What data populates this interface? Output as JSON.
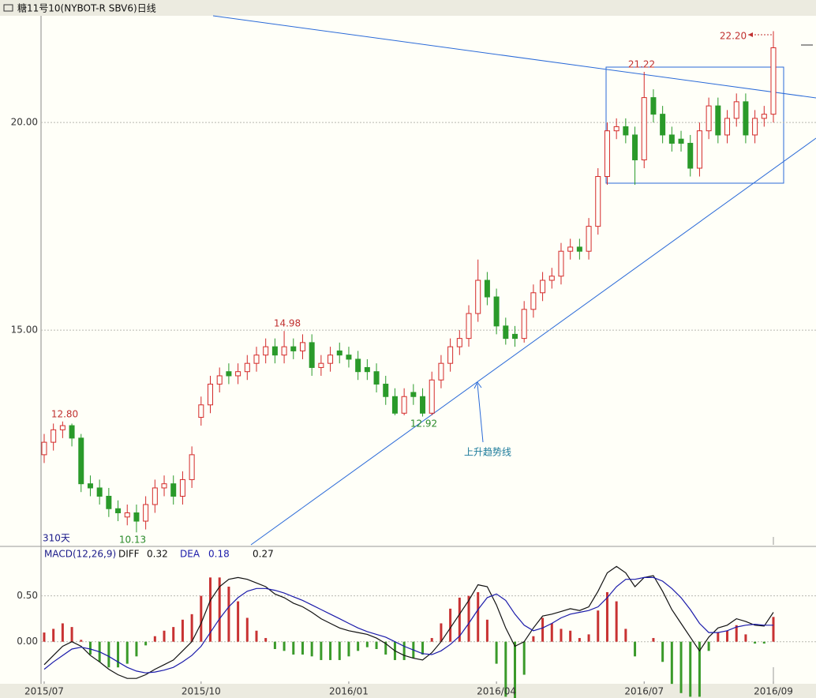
{
  "window_title": "糖11号10(NYBOT-R SBV6)日线",
  "chart_data": [
    {
      "type": "candlestick",
      "categories": [
        null,
        null,
        null,
        null,
        null,
        null,
        null,
        null,
        null,
        null,
        null,
        null,
        null,
        null,
        null,
        null,
        null,
        null,
        null,
        null,
        null,
        null,
        null,
        null,
        null,
        null,
        null,
        null,
        null,
        null,
        null,
        null,
        null,
        null,
        null,
        null,
        null,
        null,
        null,
        null,
        null,
        null,
        null,
        null,
        null,
        null,
        null,
        null,
        null,
        null,
        null,
        null,
        null,
        null,
        null,
        null,
        null,
        null,
        null,
        null,
        null,
        null,
        null,
        null,
        null,
        null,
        null,
        null,
        null,
        null,
        null,
        null,
        null,
        null,
        null,
        null,
        null,
        null,
        null,
        null
      ],
      "open": [
        12.0,
        12.3,
        12.6,
        12.7,
        12.4,
        11.3,
        11.2,
        11.0,
        10.7,
        10.5,
        10.6,
        10.4,
        10.8,
        11.2,
        11.3,
        11.0,
        11.4,
        12.9,
        13.2,
        13.7,
        14.0,
        13.9,
        14.0,
        14.2,
        14.4,
        14.6,
        14.4,
        14.6,
        14.5,
        14.7,
        14.1,
        14.2,
        14.5,
        14.4,
        14.3,
        14.1,
        14.0,
        13.7,
        13.4,
        13.0,
        13.5,
        13.4,
        13.0,
        13.8,
        14.2,
        14.6,
        14.8,
        15.4,
        16.2,
        15.8,
        15.1,
        14.9,
        14.8,
        15.5,
        15.9,
        16.2,
        16.3,
        16.9,
        17.0,
        16.9,
        17.5,
        18.7,
        19.8,
        19.9,
        19.7,
        19.1,
        20.6,
        20.2,
        19.7,
        19.6,
        19.5,
        18.9,
        19.8,
        20.4,
        19.7,
        20.1,
        20.5,
        19.7,
        20.1,
        20.2
      ],
      "high": [
        12.5,
        12.75,
        12.8,
        12.75,
        12.5,
        11.5,
        11.4,
        11.2,
        10.9,
        10.8,
        10.8,
        11.0,
        11.4,
        11.5,
        11.5,
        11.6,
        12.2,
        13.4,
        13.9,
        14.1,
        14.2,
        14.2,
        14.4,
        14.6,
        14.8,
        14.8,
        14.98,
        14.8,
        14.9,
        14.9,
        14.4,
        14.6,
        14.7,
        14.6,
        14.5,
        14.3,
        14.2,
        13.9,
        13.6,
        13.6,
        13.7,
        13.6,
        14.0,
        14.4,
        14.8,
        15.0,
        15.6,
        16.7,
        16.4,
        16.0,
        15.3,
        15.1,
        15.7,
        16.1,
        16.4,
        16.5,
        17.1,
        17.2,
        17.2,
        17.7,
        18.9,
        20.0,
        20.1,
        20.1,
        19.9,
        21.22,
        20.8,
        20.4,
        19.9,
        19.8,
        19.7,
        20.0,
        20.6,
        20.6,
        20.3,
        20.7,
        20.7,
        20.3,
        20.4,
        22.2
      ],
      "low": [
        11.8,
        12.1,
        12.4,
        12.2,
        11.1,
        11.0,
        10.8,
        10.5,
        10.4,
        10.3,
        10.13,
        10.2,
        10.6,
        11.0,
        10.8,
        10.8,
        11.2,
        12.7,
        13.0,
        13.5,
        13.7,
        13.7,
        13.8,
        14.0,
        14.2,
        14.2,
        14.2,
        14.3,
        14.3,
        13.9,
        13.9,
        14.0,
        14.2,
        14.1,
        13.8,
        13.8,
        13.5,
        13.2,
        12.95,
        12.95,
        13.2,
        12.92,
        12.95,
        13.6,
        14.0,
        14.4,
        14.6,
        15.2,
        15.6,
        14.9,
        14.65,
        14.6,
        14.7,
        15.3,
        15.7,
        16.0,
        16.1,
        16.7,
        16.7,
        16.7,
        17.3,
        18.5,
        19.6,
        19.5,
        18.5,
        18.9,
        20.0,
        19.5,
        19.3,
        19.3,
        18.7,
        18.7,
        19.6,
        19.5,
        19.5,
        19.9,
        19.5,
        19.5,
        19.9,
        20.0
      ],
      "close": [
        12.3,
        12.6,
        12.7,
        12.4,
        11.3,
        11.2,
        11.0,
        10.7,
        10.6,
        10.6,
        10.4,
        10.8,
        11.2,
        11.3,
        11.0,
        11.4,
        12.0,
        13.2,
        13.7,
        13.9,
        13.9,
        14.0,
        14.2,
        14.4,
        14.6,
        14.4,
        14.6,
        14.5,
        14.7,
        14.1,
        14.2,
        14.4,
        14.4,
        14.3,
        14.0,
        14.0,
        13.7,
        13.4,
        13.0,
        13.4,
        13.4,
        13.0,
        13.8,
        14.2,
        14.6,
        14.8,
        15.4,
        16.2,
        15.8,
        15.1,
        14.8,
        14.8,
        15.5,
        15.9,
        16.2,
        16.3,
        16.9,
        17.0,
        16.9,
        17.5,
        18.7,
        19.8,
        19.9,
        19.7,
        19.1,
        20.6,
        20.2,
        19.7,
        19.5,
        19.5,
        18.9,
        19.8,
        20.4,
        19.7,
        20.1,
        20.5,
        19.7,
        20.1,
        20.2,
        21.8
      ],
      "up_color": "#d42a2a",
      "down_color": "#2a9a2a",
      "xlim": [
        -0.34,
        82.42
      ],
      "ylim": [
        9.83,
        22.57
      ],
      "yticks": [
        {
          "value": 15,
          "label": "15.00"
        },
        {
          "value": 20,
          "label": "20.00"
        }
      ],
      "grid": true,
      "annotations": [
        {
          "text": "12.80"
        },
        {
          "text": "10.13"
        },
        {
          "text": "14.98"
        },
        {
          "text": "12.92"
        },
        {
          "text": "21.22"
        },
        {
          "text": "22.20"
        }
      ],
      "period_label": "310天",
      "trend_label": "上升趋势线"
    },
    {
      "type": "macd",
      "title": "MACD(12,26,9)",
      "diff_value": 0.32,
      "dea_value": 0.18,
      "macd_value": 0.27,
      "xlim": [
        -0.34,
        82.42
      ],
      "ylim": [
        -0.45,
        1.03
      ],
      "yticks": [
        {
          "value": 0,
          "label": "0.00"
        },
        {
          "value": 0.5,
          "label": "0.50"
        }
      ],
      "grid": true,
      "xticks": [
        {
          "value": 0,
          "label": "2015/07"
        },
        {
          "value": 17,
          "label": "2015/10"
        },
        {
          "value": 33,
          "label": "2016/01"
        },
        {
          "value": 49,
          "label": "2016/04"
        },
        {
          "value": 65,
          "label": "2016/07"
        },
        {
          "value": 79,
          "label": "2016/09"
        }
      ],
      "series": [
        {
          "name": "DIFF",
          "color": "#111111",
          "values": [
            -0.25,
            -0.15,
            -0.05,
            0.0,
            -0.05,
            -0.15,
            -0.22,
            -0.3,
            -0.36,
            -0.4,
            -0.4,
            -0.36,
            -0.3,
            -0.25,
            -0.2,
            -0.1,
            0.0,
            0.2,
            0.45,
            0.6,
            0.68,
            0.7,
            0.68,
            0.64,
            0.6,
            0.52,
            0.48,
            0.42,
            0.38,
            0.32,
            0.25,
            0.2,
            0.15,
            0.12,
            0.1,
            0.08,
            0.04,
            -0.02,
            -0.1,
            -0.15,
            -0.18,
            -0.2,
            -0.12,
            0.0,
            0.15,
            0.3,
            0.45,
            0.62,
            0.6,
            0.4,
            0.15,
            -0.05,
            0.0,
            0.15,
            0.28,
            0.3,
            0.33,
            0.36,
            0.34,
            0.38,
            0.55,
            0.75,
            0.82,
            0.75,
            0.6,
            0.7,
            0.72,
            0.55,
            0.35,
            0.2,
            0.05,
            -0.1,
            0.05,
            0.15,
            0.18,
            0.25,
            0.22,
            0.18,
            0.17,
            0.32
          ]
        },
        {
          "name": "DEA",
          "color": "#1a1aaa",
          "values": [
            -0.3,
            -0.22,
            -0.15,
            -0.08,
            -0.06,
            -0.08,
            -0.11,
            -0.16,
            -0.22,
            -0.28,
            -0.32,
            -0.34,
            -0.33,
            -0.31,
            -0.28,
            -0.22,
            -0.15,
            -0.05,
            0.1,
            0.25,
            0.38,
            0.48,
            0.55,
            0.58,
            0.58,
            0.56,
            0.53,
            0.49,
            0.45,
            0.4,
            0.35,
            0.3,
            0.25,
            0.2,
            0.15,
            0.11,
            0.08,
            0.05,
            0.0,
            -0.05,
            -0.09,
            -0.13,
            -0.14,
            -0.1,
            -0.03,
            0.06,
            0.2,
            0.35,
            0.48,
            0.52,
            0.45,
            0.3,
            0.18,
            0.12,
            0.15,
            0.2,
            0.26,
            0.3,
            0.32,
            0.34,
            0.38,
            0.48,
            0.6,
            0.68,
            0.68,
            0.7,
            0.7,
            0.66,
            0.58,
            0.48,
            0.35,
            0.2,
            0.1,
            0.1,
            0.12,
            0.16,
            0.18,
            0.19,
            0.18,
            0.18
          ]
        }
      ],
      "histogram": [
        0.1,
        0.14,
        0.2,
        0.16,
        0.02,
        -0.14,
        -0.22,
        -0.28,
        -0.28,
        -0.24,
        -0.16,
        -0.04,
        0.06,
        0.12,
        0.16,
        0.24,
        0.3,
        0.5,
        0.7,
        0.7,
        0.6,
        0.44,
        0.26,
        0.12,
        0.04,
        -0.08,
        -0.1,
        -0.14,
        -0.14,
        -0.16,
        -0.2,
        -0.2,
        -0.2,
        -0.16,
        -0.1,
        -0.06,
        -0.08,
        -0.14,
        -0.2,
        -0.2,
        -0.18,
        -0.14,
        0.04,
        0.2,
        0.36,
        0.48,
        0.5,
        0.54,
        0.24,
        -0.24,
        -0.6,
        -0.7,
        -0.36,
        0.06,
        0.26,
        0.2,
        0.14,
        0.12,
        0.04,
        0.08,
        0.34,
        0.54,
        0.44,
        0.14,
        -0.16,
        0.0,
        0.04,
        -0.22,
        -0.46,
        -0.56,
        -0.6,
        -0.6,
        -0.1,
        0.1,
        0.12,
        0.18,
        0.08,
        -0.02,
        -0.02,
        0.27
      ],
      "up_color": "#c83232",
      "down_color": "#3a9a2a"
    }
  ]
}
